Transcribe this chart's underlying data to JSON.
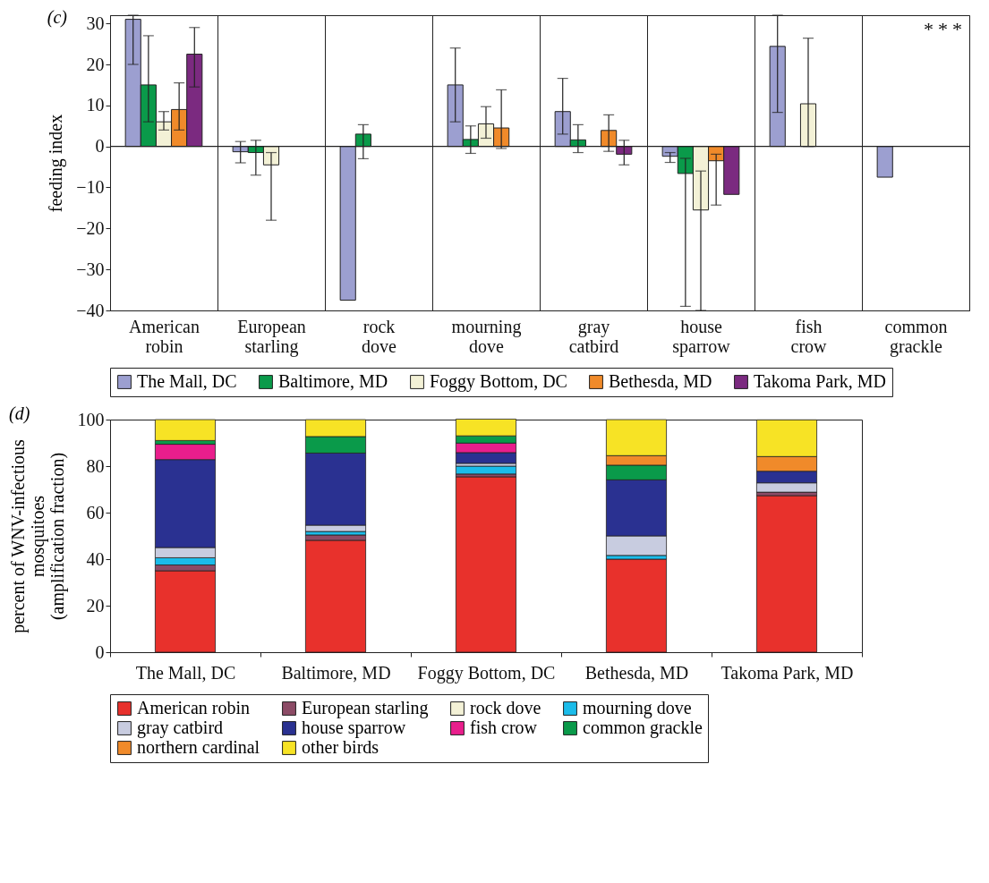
{
  "chart_data": [
    {
      "type": "bar",
      "title": "(c)",
      "ylabel": "feeding index",
      "categories": [
        "American robin",
        "European starling",
        "rock dove",
        "mourning dove",
        "gray catbird",
        "house sparrow",
        "fish crow",
        "common grackle"
      ],
      "series": [
        {
          "name": "The Mall, DC",
          "color": "#9c9fd0",
          "values": [
            31,
            -1.3,
            -37.5,
            15,
            8.5,
            -2.4,
            24.4,
            -7.5
          ],
          "errors": [
            [
              20,
              32
            ],
            [
              -4,
              1.2
            ],
            null,
            [
              6,
              24
            ],
            [
              3,
              16.6
            ],
            [
              -3.9,
              -1.5
            ],
            [
              8.3,
              32
            ],
            null
          ]
        },
        {
          "name": "Baltimore, MD",
          "color": "#0a9a4a",
          "values": [
            15,
            -1.5,
            3,
            1.7,
            1.6,
            -6.6,
            null,
            null
          ],
          "errors": [
            [
              6,
              27
            ],
            [
              -7,
              1.5
            ],
            [
              -3,
              5.3
            ],
            [
              -1.7,
              5
            ],
            [
              -1.5,
              5.3
            ],
            [
              -39,
              -2.9
            ],
            null,
            null
          ]
        },
        {
          "name": "Foggy Bottom, DC",
          "color": "#f3f1d6",
          "values": [
            6,
            -4.5,
            null,
            5.5,
            null,
            -15.5,
            10.4,
            null
          ],
          "errors": [
            [
              4,
              8.5
            ],
            [
              -18,
              -1.5
            ],
            null,
            [
              2,
              9.7
            ],
            null,
            [
              -40,
              -6
            ],
            [
              0,
              26.4
            ],
            null
          ]
        },
        {
          "name": "Bethesda, MD",
          "color": "#f08a2a",
          "values": [
            9,
            null,
            null,
            4.5,
            3.9,
            -3.5,
            null,
            null
          ],
          "errors": [
            [
              4,
              15.5
            ],
            null,
            null,
            [
              -0.5,
              13.8
            ],
            [
              -1.2,
              7.7
            ],
            [
              -14.3,
              -1.9
            ],
            null,
            null
          ]
        },
        {
          "name": "Takoma Park, MD",
          "color": "#7b2a80",
          "values": [
            22.5,
            null,
            null,
            null,
            -1.9,
            -11.7,
            null,
            null
          ],
          "errors": [
            [
              14.5,
              29
            ],
            null,
            null,
            null,
            [
              -4.5,
              1.5
            ],
            null,
            null,
            null
          ]
        }
      ],
      "ylim": [
        -40,
        32
      ],
      "yticks": [
        -40,
        -30,
        -20,
        -10,
        0,
        10,
        20,
        30
      ],
      "grid": "x",
      "legend": "bottom",
      "ref_lines": [
        {
          "axis": "y",
          "value": 0
        }
      ],
      "annotations": [
        "*",
        "*",
        "*"
      ]
    },
    {
      "type": "bar",
      "title": "(d)",
      "ylabel": "percent of WNV-infectious\nmosquitoes\n(amplification fraction)",
      "stacked": true,
      "categories": [
        "The Mall, DC",
        "Baltimore, MD",
        "Foggy Bottom, DC",
        "Bethesda, MD",
        "Takoma Park, MD"
      ],
      "series": [
        {
          "name": "American robin",
          "color": "#e8312c",
          "values": [
            35,
            48.1,
            75.4,
            40,
            67.3
          ]
        },
        {
          "name": "European starling",
          "color": "#8c4b66",
          "values": [
            2.5,
            2.3,
            1.2,
            null,
            1.5
          ]
        },
        {
          "name": "rock dove",
          "color": "#f3f1d6",
          "values": [
            null,
            null,
            null,
            null,
            null
          ]
        },
        {
          "name": "mourning dove",
          "color": "#1bbcea",
          "values": [
            3.1,
            1.5,
            3.4,
            1.6,
            null
          ]
        },
        {
          "name": "gray catbird",
          "color": "#c8cce0",
          "values": [
            4.4,
            2.7,
            1.2,
            8.4,
            4
          ]
        },
        {
          "name": "house sparrow",
          "color": "#2a3191",
          "values": [
            37.8,
            31,
            4.6,
            24.1,
            5
          ]
        },
        {
          "name": "fish crow",
          "color": "#e91e8c",
          "values": [
            6.6,
            null,
            4.1,
            null,
            null
          ]
        },
        {
          "name": "common grackle",
          "color": "#0a9a4a",
          "values": [
            1.6,
            7.1,
            3.1,
            6.3,
            null
          ]
        },
        {
          "name": "northern cardinal",
          "color": "#f08a2a",
          "values": [
            null,
            null,
            null,
            4.1,
            6.3
          ]
        },
        {
          "name": "other birds",
          "color": "#f7e325",
          "values": [
            9,
            7.3,
            7.2,
            15.5,
            15.8
          ]
        }
      ],
      "ylim": [
        0,
        100
      ],
      "yticks": [
        0,
        20,
        40,
        60,
        80,
        100
      ],
      "legend": "bottom"
    }
  ]
}
